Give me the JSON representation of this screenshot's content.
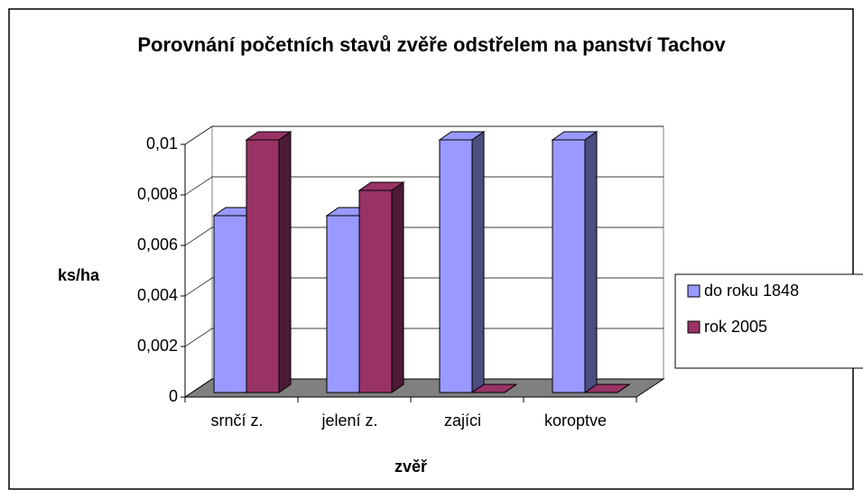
{
  "chart_data": {
    "type": "bar3d",
    "title": "Porovnání početních stavů zvěře odstřelem na panství Tachov",
    "y_label": "ks/ha",
    "x_label": "zvěř",
    "categories": [
      "srnčí z.",
      "jelení z.",
      "zajíci",
      "koroptve"
    ],
    "series": [
      {
        "name": "do roku 1848",
        "color": "#9999ff",
        "values": [
          0.007,
          0.007,
          0.01,
          0.01
        ]
      },
      {
        "name": "rok 2005",
        "color": "#993366",
        "values": [
          0.01,
          0.008,
          0,
          0
        ]
      }
    ],
    "ylim": [
      0,
      0.01
    ],
    "yticks": [
      0,
      {
        "value": 0.002,
        "label": "0,002"
      },
      {
        "value": 0.004,
        "label": "0,004"
      },
      {
        "value": 0.006,
        "label": "0,006"
      },
      {
        "value": 0.008,
        "label": "0,008"
      },
      {
        "value": 0.01,
        "label": "0,01"
      }
    ],
    "grid": true,
    "legend": "right"
  }
}
